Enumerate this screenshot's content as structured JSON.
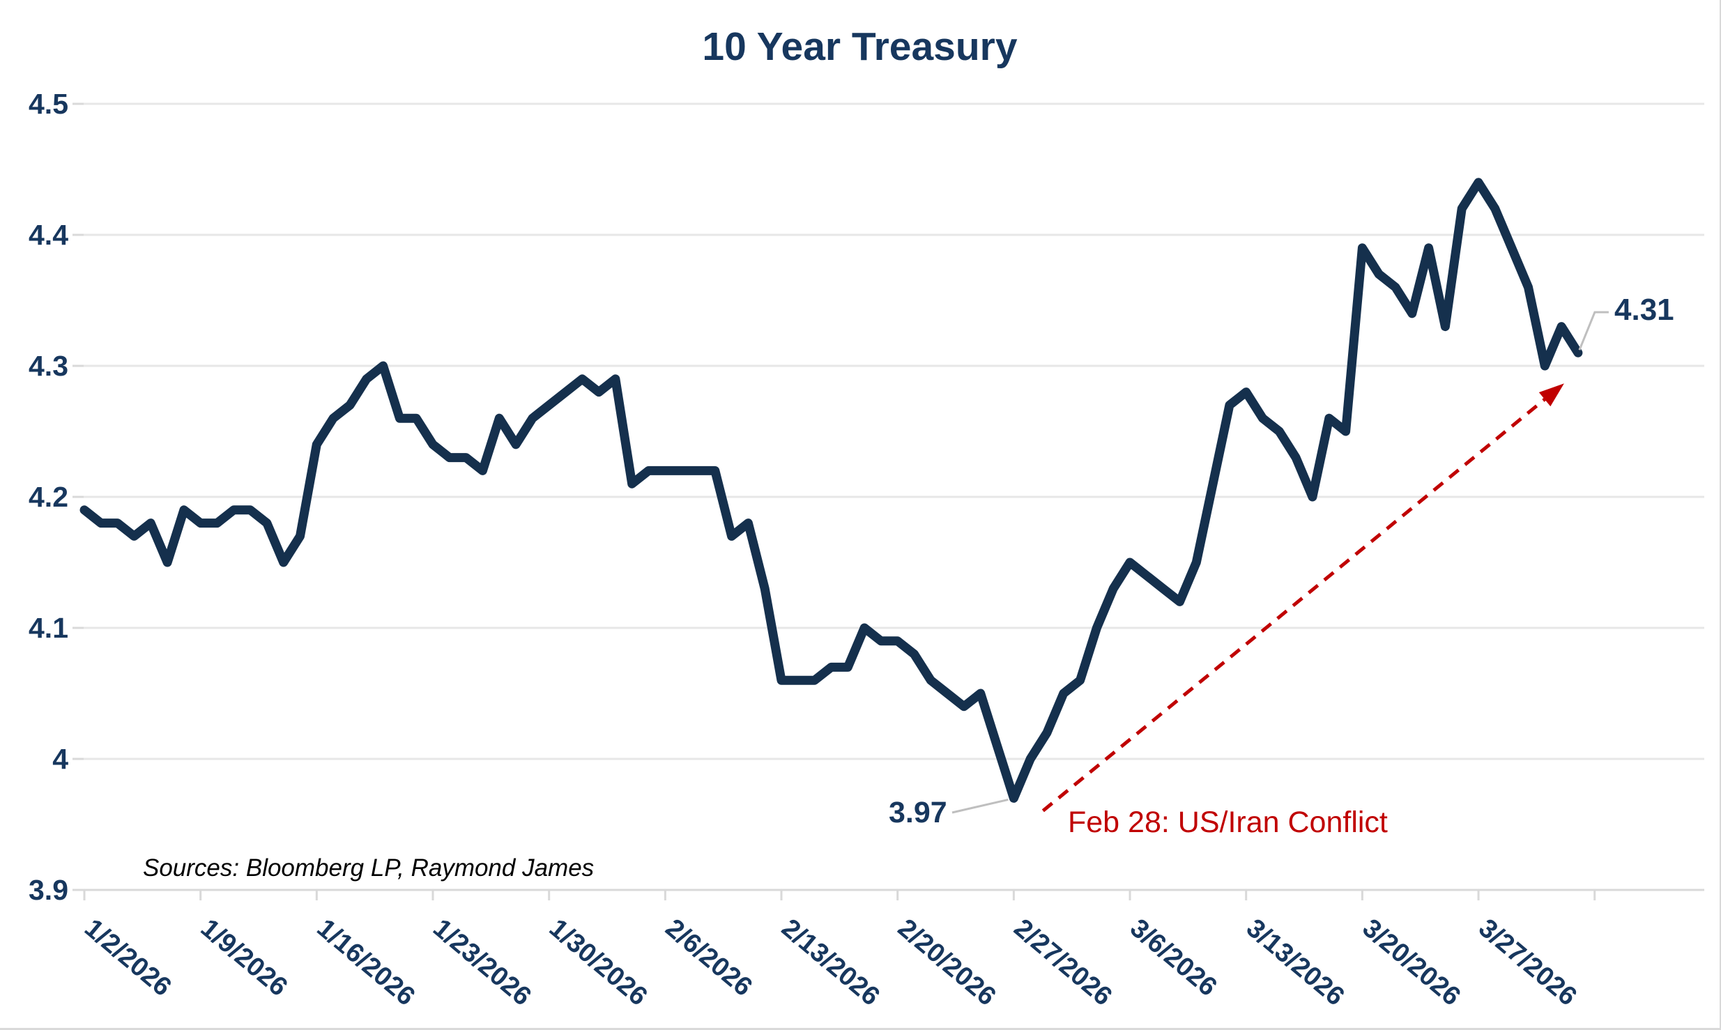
{
  "window": {
    "title": "10 Year Treasury"
  },
  "chart_data": {
    "type": "line",
    "title": "10 Year Treasury",
    "xlabel": "",
    "ylabel": "",
    "ylim": [
      3.9,
      4.5
    ],
    "y_tick_labels": [
      "4.5",
      "4.4",
      "4.3",
      "4.2",
      "4.1",
      "4",
      "3.9"
    ],
    "y_tick_values": [
      4.5,
      4.4,
      4.3,
      4.2,
      4.1,
      4.0,
      3.9
    ],
    "grid": "horizontal",
    "legend": "none",
    "x_tick_interval_days": 7,
    "x_tick_labels": [
      "1/2/2026",
      "1/9/2026",
      "1/16/2026",
      "1/23/2026",
      "1/30/2026",
      "2/6/2026",
      "2/13/2026",
      "2/20/2026",
      "2/27/2026",
      "3/6/2026",
      "3/13/2026",
      "3/20/2026",
      "3/27/2026"
    ],
    "series": [
      {
        "name": "10 Year Treasury Yield (%)",
        "color": "#15304d",
        "dates": [
          "1/2/2026",
          "1/3/2026",
          "1/4/2026",
          "1/5/2026",
          "1/6/2026",
          "1/7/2026",
          "1/8/2026",
          "1/9/2026",
          "1/10/2026",
          "1/11/2026",
          "1/12/2026",
          "1/13/2026",
          "1/14/2026",
          "1/15/2026",
          "1/16/2026",
          "1/17/2026",
          "1/18/2026",
          "1/19/2026",
          "1/20/2026",
          "1/21/2026",
          "1/22/2026",
          "1/23/2026",
          "1/24/2026",
          "1/25/2026",
          "1/26/2026",
          "1/27/2026",
          "1/28/2026",
          "1/29/2026",
          "1/30/2026",
          "1/31/2026",
          "2/1/2026",
          "2/2/2026",
          "2/3/2026",
          "2/4/2026",
          "2/5/2026",
          "2/6/2026",
          "2/7/2026",
          "2/8/2026",
          "2/9/2026",
          "2/10/2026",
          "2/11/2026",
          "2/12/2026",
          "2/13/2026",
          "2/14/2026",
          "2/15/2026",
          "2/16/2026",
          "2/17/2026",
          "2/18/2026",
          "2/19/2026",
          "2/20/2026",
          "2/21/2026",
          "2/22/2026",
          "2/23/2026",
          "2/24/2026",
          "2/25/2026",
          "2/26/2026",
          "2/27/2026",
          "2/28/2026",
          "3/1/2026",
          "3/2/2026",
          "3/3/2026",
          "3/4/2026",
          "3/5/2026",
          "3/6/2026",
          "3/7/2026",
          "3/8/2026",
          "3/9/2026",
          "3/10/2026",
          "3/11/2026",
          "3/12/2026",
          "3/13/2026",
          "3/14/2026",
          "3/15/2026",
          "3/16/2026",
          "3/17/2026",
          "3/18/2026",
          "3/19/2026",
          "3/20/2026",
          "3/21/2026",
          "3/22/2026",
          "3/23/2026",
          "3/24/2026",
          "3/25/2026",
          "3/26/2026",
          "3/27/2026",
          "3/28/2026",
          "3/29/2026",
          "3/30/2026",
          "3/31/2026",
          "4/1/2026",
          "4/2/2026"
        ],
        "values": [
          4.19,
          4.18,
          4.18,
          4.17,
          4.18,
          4.15,
          4.19,
          4.18,
          4.18,
          4.19,
          4.19,
          4.18,
          4.15,
          4.17,
          4.24,
          4.26,
          4.27,
          4.29,
          4.3,
          4.26,
          4.26,
          4.24,
          4.23,
          4.23,
          4.22,
          4.26,
          4.24,
          4.26,
          4.27,
          4.28,
          4.29,
          4.28,
          4.29,
          4.21,
          4.22,
          4.22,
          4.22,
          4.22,
          4.22,
          4.17,
          4.18,
          4.13,
          4.06,
          4.06,
          4.06,
          4.07,
          4.07,
          4.1,
          4.09,
          4.09,
          4.08,
          4.06,
          4.05,
          4.04,
          4.05,
          4.01,
          3.97,
          4.0,
          4.02,
          4.05,
          4.06,
          4.1,
          4.13,
          4.15,
          4.14,
          4.13,
          4.12,
          4.15,
          4.21,
          4.27,
          4.28,
          4.26,
          4.25,
          4.23,
          4.2,
          4.26,
          4.25,
          4.39,
          4.37,
          4.36,
          4.34,
          4.39,
          4.33,
          4.42,
          4.44,
          4.42,
          4.39,
          4.36,
          4.3,
          4.33,
          4.31
        ]
      }
    ],
    "annotations": {
      "min_point": {
        "label": "3.97",
        "date": "2/27/2026",
        "value": 3.97,
        "day_index": 56
      },
      "last_point": {
        "label": "4.31",
        "date": "4/2/2026",
        "value": 4.31,
        "day_index": 90
      },
      "event": {
        "label": "Feb 28: US/Iran Conflict",
        "color": "#c00000",
        "style": "dashed-arrow",
        "description": "red dashed arrow from the 2/27 low up toward the final data point"
      }
    },
    "source_note": "Sources: Bloomberg LP, Raymond James",
    "colors": {
      "line": "#15304d",
      "text_navy": "#17375e",
      "event_red": "#c00000",
      "gridline": "#e7e7e7",
      "axis": "#d9d9d9",
      "leader": "#bfbfbf",
      "background": "#ffffff"
    }
  }
}
